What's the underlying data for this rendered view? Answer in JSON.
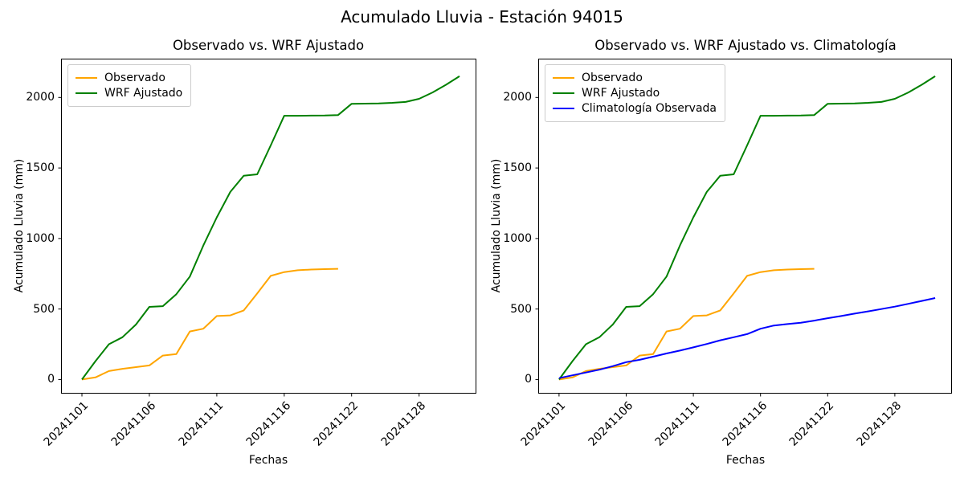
{
  "suptitle": "Acumulado Lluvia - Estación 94015",
  "chart_data": [
    {
      "type": "line",
      "title": "Observado vs. WRF Ajustado",
      "xlabel": "Fechas",
      "ylabel": "Acumulado Lluvia (mm)",
      "grid": false,
      "legend_position": "upper left",
      "xlim": [
        -1.55,
        29.25
      ],
      "ylim": [
        -100,
        2275
      ],
      "y_ticks": [
        0,
        500,
        1000,
        1500,
        2000
      ],
      "x_ticks": [
        {
          "pos": 0,
          "label": "20241101"
        },
        {
          "pos": 5,
          "label": "20241106"
        },
        {
          "pos": 10,
          "label": "20241111"
        },
        {
          "pos": 15,
          "label": "20241116"
        },
        {
          "pos": 20,
          "label": "20241122"
        },
        {
          "pos": 25,
          "label": "20241128"
        }
      ],
      "series": [
        {
          "name": "Observado",
          "color": "#ffa500",
          "values": [
            0,
            15,
            60,
            76,
            88,
            100,
            170,
            180,
            341,
            360,
            450,
            455,
            490,
            610,
            735,
            762,
            775,
            780,
            783,
            785
          ]
        },
        {
          "name": "WRF Ajustado",
          "color": "#008000",
          "values": [
            0,
            130,
            250,
            300,
            390,
            515,
            520,
            605,
            730,
            950,
            1150,
            1330,
            1445,
            1455,
            1660,
            1870,
            1870,
            1871,
            1872,
            1875,
            1955,
            1956,
            1958,
            1962,
            1968,
            1990,
            2035,
            2090,
            2150
          ]
        }
      ]
    },
    {
      "type": "line",
      "title": "Observado vs. WRF Ajustado vs. Climatología",
      "xlabel": "Fechas",
      "ylabel": "Acumulado Lluvia (mm)",
      "grid": false,
      "legend_position": "upper left",
      "xlim": [
        -1.55,
        29.25
      ],
      "ylim": [
        -100,
        2275
      ],
      "y_ticks": [
        0,
        500,
        1000,
        1500,
        2000
      ],
      "x_ticks": [
        {
          "pos": 0,
          "label": "20241101"
        },
        {
          "pos": 5,
          "label": "20241106"
        },
        {
          "pos": 10,
          "label": "20241111"
        },
        {
          "pos": 15,
          "label": "20241116"
        },
        {
          "pos": 20,
          "label": "20241122"
        },
        {
          "pos": 25,
          "label": "20241128"
        }
      ],
      "series": [
        {
          "name": "Observado",
          "color": "#ffa500",
          "values": [
            0,
            15,
            60,
            76,
            88,
            100,
            170,
            180,
            341,
            360,
            450,
            455,
            490,
            610,
            735,
            762,
            775,
            780,
            783,
            785
          ]
        },
        {
          "name": "WRF Ajustado",
          "color": "#008000",
          "values": [
            0,
            130,
            250,
            300,
            390,
            515,
            520,
            605,
            730,
            950,
            1150,
            1330,
            1445,
            1455,
            1660,
            1870,
            1870,
            1871,
            1872,
            1875,
            1955,
            1956,
            1958,
            1962,
            1968,
            1990,
            2035,
            2090,
            2150
          ]
        },
        {
          "name": "Climatología Observada",
          "color": "#0000ff",
          "values": [
            10,
            30,
            50,
            70,
            95,
            123,
            140,
            162,
            185,
            205,
            228,
            252,
            278,
            300,
            322,
            360,
            383,
            393,
            403,
            418,
            435,
            450,
            467,
            483,
            500,
            517,
            537,
            557,
            578
          ]
        }
      ]
    }
  ]
}
